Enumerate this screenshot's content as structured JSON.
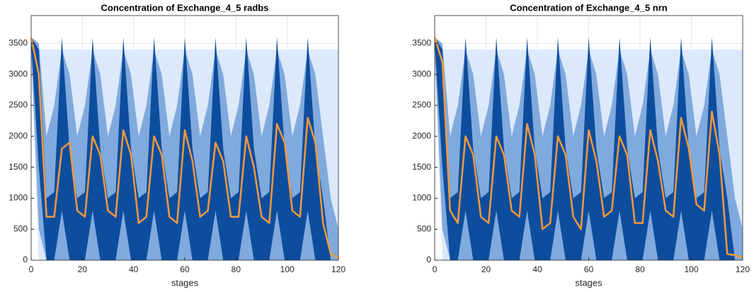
{
  "chart_data": [
    {
      "type": "fan",
      "title": "Concentration of Exchange_4_5 radbs",
      "xlabel": "stages",
      "xlim": [
        0,
        120
      ],
      "ylim": [
        0,
        3950
      ],
      "xticks": [
        0,
        20,
        40,
        60,
        80,
        100,
        120
      ],
      "yticks": [
        0,
        500,
        1000,
        1500,
        2000,
        2500,
        3000,
        3500
      ],
      "grid": true,
      "x": [
        0,
        3,
        6,
        9,
        12,
        15,
        18,
        21,
        24,
        27,
        30,
        33,
        36,
        39,
        42,
        45,
        48,
        51,
        54,
        57,
        60,
        63,
        66,
        69,
        72,
        75,
        78,
        81,
        84,
        87,
        90,
        93,
        96,
        99,
        102,
        105,
        108,
        111,
        114,
        117,
        120
      ],
      "bands": [
        {
          "color": "#dce9fb",
          "upper": [
            3600,
            3400,
            3400,
            3400,
            3400,
            3400,
            3400,
            3400,
            3400,
            3400,
            3400,
            3400,
            3400,
            3400,
            3400,
            3400,
            3400,
            3400,
            3400,
            3400,
            3400,
            3400,
            3400,
            3400,
            3400,
            3400,
            3400,
            3400,
            3400,
            3400,
            3400,
            3400,
            3400,
            3400,
            3400,
            3400,
            3400,
            3400,
            3400,
            3400,
            3400
          ],
          "lower": [
            3300,
            0,
            0,
            0,
            0,
            0,
            0,
            0,
            0,
            0,
            0,
            0,
            0,
            0,
            0,
            0,
            0,
            0,
            0,
            0,
            0,
            0,
            0,
            0,
            0,
            0,
            0,
            0,
            0,
            0,
            0,
            0,
            0,
            0,
            0,
            0,
            0,
            0,
            0,
            0,
            0
          ]
        },
        {
          "color": "#80aadd",
          "upper": [
            3600,
            3500,
            2000,
            2500,
            3400,
            3000,
            2000,
            2500,
            3400,
            3000,
            2000,
            2500,
            3400,
            3000,
            2000,
            2500,
            3400,
            3000,
            2000,
            2500,
            3400,
            3000,
            2000,
            2500,
            3400,
            3000,
            2000,
            2500,
            3400,
            3000,
            2000,
            2500,
            3400,
            3000,
            2000,
            2500,
            3400,
            3000,
            2000,
            1000,
            500
          ],
          "lower": [
            3400,
            500,
            0,
            0,
            0,
            0,
            0,
            0,
            0,
            0,
            0,
            0,
            0,
            0,
            0,
            0,
            0,
            0,
            0,
            0,
            0,
            0,
            0,
            0,
            0,
            0,
            0,
            0,
            0,
            0,
            0,
            0,
            0,
            0,
            0,
            0,
            0,
            0,
            0,
            0,
            0
          ]
        },
        {
          "color": "#0d4d9e",
          "upper": [
            3600,
            3400,
            1000,
            1100,
            3600,
            1800,
            1000,
            1100,
            3600,
            1800,
            1000,
            1100,
            3600,
            1800,
            1000,
            1100,
            3600,
            1800,
            1000,
            1100,
            3600,
            1800,
            1000,
            1100,
            3600,
            1800,
            1000,
            1100,
            3600,
            1800,
            1000,
            1100,
            3600,
            1800,
            1000,
            1100,
            3600,
            1800,
            1000,
            0,
            0
          ],
          "lower": [
            3500,
            1500,
            0,
            0,
            800,
            0,
            0,
            0,
            800,
            0,
            0,
            0,
            800,
            0,
            0,
            0,
            800,
            0,
            0,
            0,
            800,
            0,
            0,
            0,
            800,
            0,
            0,
            0,
            800,
            0,
            0,
            0,
            800,
            0,
            0,
            0,
            800,
            0,
            0,
            0,
            0
          ]
        }
      ],
      "series": [
        {
          "color": "#f59a3c",
          "values": [
            3600,
            3000,
            700,
            700,
            1800,
            1900,
            800,
            700,
            2000,
            1700,
            800,
            700,
            2100,
            1700,
            600,
            700,
            2000,
            1700,
            700,
            600,
            2100,
            1600,
            700,
            800,
            1900,
            1600,
            700,
            700,
            2000,
            1500,
            700,
            600,
            2200,
            1900,
            800,
            700,
            2300,
            1900,
            600,
            100,
            40
          ]
        }
      ]
    },
    {
      "type": "fan",
      "title": "Concentration of Exchange_4_5 nrn",
      "xlabel": "stages",
      "xlim": [
        0,
        120
      ],
      "ylim": [
        0,
        3950
      ],
      "xticks": [
        0,
        20,
        40,
        60,
        80,
        100,
        120
      ],
      "yticks": [
        0,
        500,
        1000,
        1500,
        2000,
        2500,
        3000,
        3500
      ],
      "grid": true,
      "x": [
        0,
        3,
        6,
        9,
        12,
        15,
        18,
        21,
        24,
        27,
        30,
        33,
        36,
        39,
        42,
        45,
        48,
        51,
        54,
        57,
        60,
        63,
        66,
        69,
        72,
        75,
        78,
        81,
        84,
        87,
        90,
        93,
        96,
        99,
        102,
        105,
        108,
        111,
        114,
        117,
        120
      ],
      "bands": [
        {
          "color": "#dce9fb",
          "upper": [
            3600,
            3400,
            3400,
            3400,
            3400,
            3400,
            3400,
            3400,
            3400,
            3400,
            3400,
            3400,
            3400,
            3400,
            3400,
            3400,
            3400,
            3400,
            3400,
            3400,
            3400,
            3400,
            3400,
            3400,
            3400,
            3400,
            3400,
            3400,
            3400,
            3400,
            3400,
            3400,
            3400,
            3400,
            3400,
            3400,
            3400,
            3400,
            3400,
            3400,
            3400
          ],
          "lower": [
            3300,
            0,
            0,
            0,
            0,
            0,
            0,
            0,
            0,
            0,
            0,
            0,
            0,
            0,
            0,
            0,
            0,
            0,
            0,
            0,
            0,
            0,
            0,
            0,
            0,
            0,
            0,
            0,
            0,
            0,
            0,
            0,
            0,
            0,
            0,
            0,
            0,
            0,
            0,
            0,
            0
          ]
        },
        {
          "color": "#80aadd",
          "upper": [
            3600,
            3500,
            2000,
            2500,
            3400,
            3000,
            2000,
            2500,
            3400,
            3000,
            2000,
            2500,
            3400,
            3000,
            2000,
            2500,
            3400,
            3000,
            2000,
            2500,
            3400,
            3000,
            2000,
            2500,
            3400,
            3000,
            2000,
            2500,
            3400,
            3000,
            2000,
            2500,
            3400,
            3000,
            2000,
            2500,
            3400,
            3000,
            2000,
            1000,
            500
          ],
          "lower": [
            3400,
            500,
            0,
            0,
            0,
            0,
            0,
            0,
            0,
            0,
            0,
            0,
            0,
            0,
            0,
            0,
            0,
            0,
            0,
            0,
            0,
            0,
            0,
            0,
            0,
            0,
            0,
            0,
            0,
            0,
            0,
            0,
            0,
            0,
            0,
            0,
            0,
            0,
            0,
            0,
            0
          ]
        },
        {
          "color": "#0d4d9e",
          "upper": [
            3600,
            3400,
            1000,
            1100,
            3600,
            1800,
            1000,
            1100,
            3600,
            1800,
            1000,
            1100,
            3600,
            1800,
            1000,
            1100,
            3600,
            1800,
            1000,
            1100,
            3600,
            1800,
            1000,
            1100,
            3600,
            1800,
            1000,
            1100,
            3600,
            1800,
            1000,
            1100,
            3600,
            1800,
            1000,
            1100,
            3600,
            1800,
            1000,
            0,
            0
          ],
          "lower": [
            3500,
            1500,
            0,
            0,
            800,
            0,
            0,
            0,
            800,
            0,
            0,
            0,
            800,
            0,
            0,
            0,
            800,
            0,
            0,
            0,
            800,
            0,
            0,
            0,
            800,
            0,
            0,
            0,
            800,
            0,
            0,
            0,
            800,
            0,
            0,
            0,
            800,
            0,
            0,
            0,
            0
          ]
        }
      ],
      "series": [
        {
          "color": "#f59a3c",
          "values": [
            3600,
            3200,
            800,
            600,
            2000,
            1700,
            700,
            600,
            2000,
            1700,
            800,
            700,
            2200,
            1700,
            500,
            600,
            2000,
            1700,
            700,
            500,
            2100,
            1600,
            700,
            800,
            2000,
            1700,
            600,
            600,
            2100,
            1600,
            800,
            700,
            2300,
            1800,
            900,
            800,
            2400,
            1700,
            100,
            80,
            40
          ]
        }
      ]
    }
  ]
}
